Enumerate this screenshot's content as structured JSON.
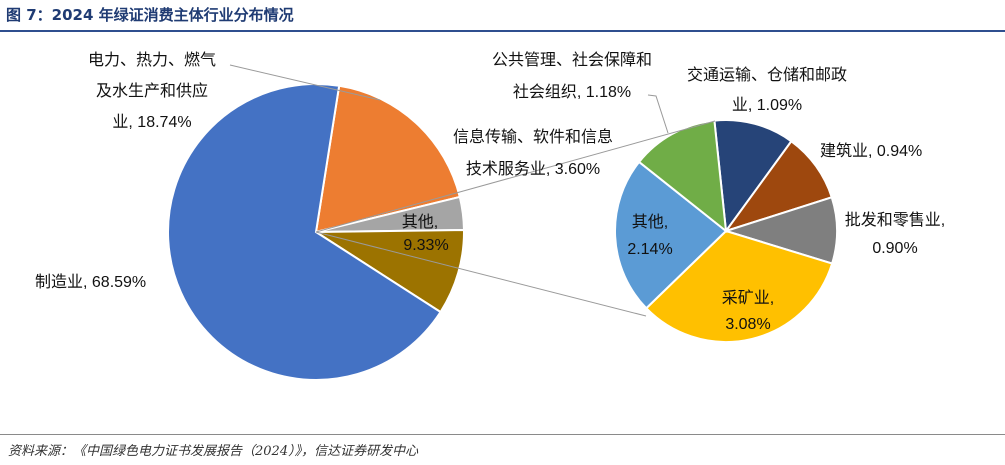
{
  "title": "图 7：2024 年绿证消费主体行业分布情况",
  "source": "资料来源：《中国绿色电力证书发展报告（2024）》，信达证券研发中心",
  "chart_data": [
    {
      "type": "pie",
      "title": "",
      "slices": [
        {
          "label": "制造业, 68.59%",
          "value": 68.59,
          "color": "#4472c4"
        },
        {
          "label": "电力、热力、燃气及水生产和供应业, 18.74%",
          "value": 18.74,
          "color": "#ed7d31"
        },
        {
          "label": "信息传输、软件和信息技术服务业, 3.60%",
          "value": 3.6,
          "color": "#a5a5a5"
        },
        {
          "label": "其他, 9.33%",
          "value": 9.33,
          "color": "#9c7300"
        }
      ]
    },
    {
      "type": "pie",
      "title": "",
      "slices": [
        {
          "label": "公共管理、社会保障和社会组织, 1.18%",
          "value": 1.18,
          "color": "#70ad47"
        },
        {
          "label": "交通运输、仓储和邮政业, 1.09%",
          "value": 1.09,
          "color": "#264478"
        },
        {
          "label": "建筑业, 0.94%",
          "value": 0.94,
          "color": "#9e480e"
        },
        {
          "label": "批发和零售业, 0.90%",
          "value": 0.9,
          "color": "#7f7f7f"
        },
        {
          "label": "采矿业, 3.08%",
          "value": 3.08,
          "color": "#ffc000"
        },
        {
          "label": "其他, 2.14%",
          "value": 2.14,
          "color": "#5b9bd5"
        }
      ]
    }
  ],
  "labels": {
    "utility_l1": "电力、热力、燃气",
    "utility_l2": "及水生产和供应",
    "utility_l3": "业, 18.74%",
    "manuf": "制造业, 68.59%",
    "it_l1": "信息传输、软件和信息",
    "it_l2": "技术服务业, 3.60%",
    "other_l1": "其他,",
    "other_l2": "9.33%",
    "public_l1": "公共管理、社会保障和",
    "public_l2": "社会组织, 1.18%",
    "transport_l1": "交通运输、仓储和邮政",
    "transport_l2": "业, 1.09%",
    "construction": "建筑业, 0.94%",
    "retail_l1": "批发和零售业,",
    "retail_l2": "0.90%",
    "mining_l1": "采矿业,",
    "mining_l2": "3.08%",
    "sother_l1": "其他,",
    "sother_l2": "2.14%"
  }
}
